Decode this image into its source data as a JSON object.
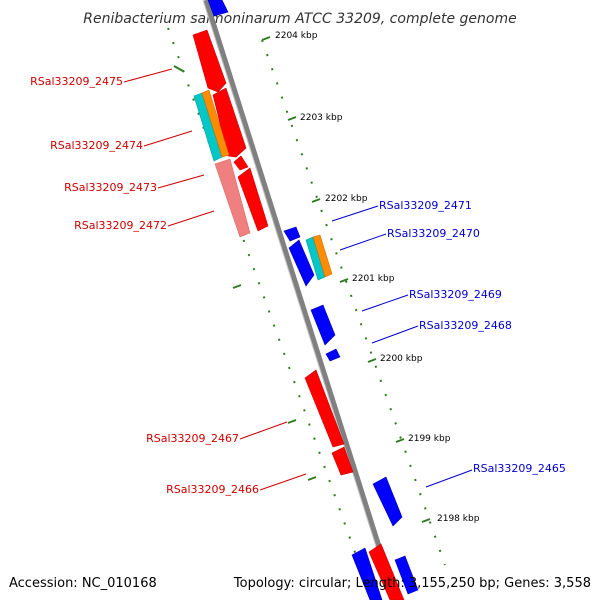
{
  "title": "Renibacterium salmoninarum ATCC 33209, complete genome",
  "footer": {
    "accession": "Accession: NC_010168",
    "summary": "Topology: circular; Length: 3,155,250 bp; Genes: 3,558"
  },
  "colors": {
    "backbone": "#808080",
    "tick_line": "#2e7d1e",
    "forward_gene": "#ff0000",
    "forward_gene_light": "#f08080",
    "reverse_gene": "#0000ff",
    "feature_cyan": "#00c8c8",
    "feature_orange": "#ff8c00",
    "forward_label": "#cc0000",
    "reverse_label": "#0000cc"
  },
  "ticks": [
    "2204 kbp",
    "2203 kbp",
    "2202 kbp",
    "2201 kbp",
    "2200 kbp",
    "2199 kbp",
    "2198 kbp"
  ],
  "forward_labels": [
    "RSal33209_2475",
    "RSal33209_2474",
    "RSal33209_2473",
    "RSal33209_2472",
    "RSal33209_2467",
    "RSal33209_2466"
  ],
  "reverse_labels": [
    "RSal33209_2471",
    "RSal33209_2470",
    "RSal33209_2469",
    "RSal33209_2468",
    "RSal33209_2465"
  ]
}
